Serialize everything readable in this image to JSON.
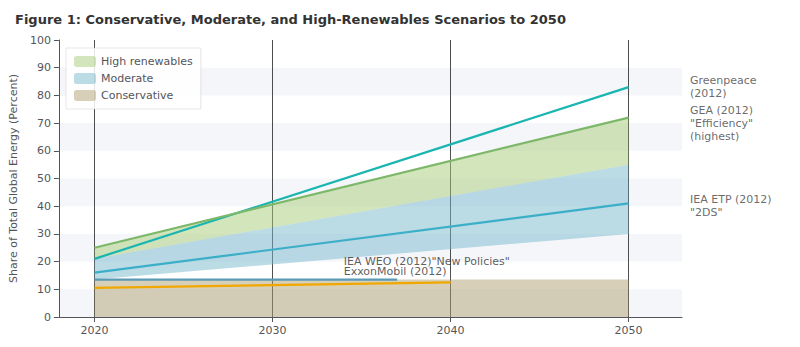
{
  "chart_data": {
    "type": "line",
    "title": "Figure 1: Conservative, Moderate, and High-Renewables Scenarios to 2050",
    "ylabel": "Share of Total Global Energy (Percent)",
    "xlim": [
      2018,
      2053
    ],
    "ylim": [
      0,
      100
    ],
    "xticks": [
      2020,
      2030,
      2040,
      2050
    ],
    "yticks": [
      0,
      10,
      20,
      30,
      40,
      50,
      60,
      70,
      80,
      90,
      100
    ],
    "grid": true,
    "legend": "upper left",
    "bands": [
      {
        "name": "High renewables",
        "color": "#a8cc78",
        "x": [
          2020,
          2050
        ],
        "y_low": [
          21,
          55
        ],
        "y_high": [
          25,
          72
        ]
      },
      {
        "name": "Moderate",
        "color": "#78b8cc",
        "x": [
          2020,
          2050
        ],
        "y_low": [
          13.5,
          30
        ],
        "y_high": [
          21,
          55
        ]
      },
      {
        "name": "Conservative",
        "color": "#b0a070",
        "x": [
          2020,
          2050
        ],
        "y_low": [
          0,
          0
        ],
        "y_high": [
          13.5,
          13.5
        ]
      }
    ],
    "series": [
      {
        "color": "#1ab5b0",
        "x": [
          2020,
          2050
        ],
        "values": [
          21,
          83
        ]
      },
      {
        "color": "#7db86a",
        "x": [
          2020,
          2050
        ],
        "values": [
          25,
          72
        ]
      },
      {
        "color": "#3baec8",
        "x": [
          2020,
          2050
        ],
        "values": [
          16,
          41
        ]
      },
      {
        "color": "#5a9ab5",
        "x": [
          2020,
          2037
        ],
        "values": [
          13.5,
          13.5
        ]
      },
      {
        "color": "#f0a800",
        "x": [
          2020,
          2040
        ],
        "values": [
          10.5,
          12.5
        ]
      }
    ],
    "side_labels": [
      {
        "y": 83,
        "text": "Greenpeace\n(2012)"
      },
      {
        "y": 70,
        "text": "GEA (2012)\n\"Efficiency\"\n(highest)"
      },
      {
        "y": 40,
        "text": "IEA ETP (2012)\n\"2DS\""
      }
    ],
    "annotations": [
      {
        "x": 2034,
        "y": 18.0,
        "text": "IEA WEO (2012)\"New Policies\""
      },
      {
        "x": 2034,
        "y": 14.5,
        "text": "ExxonMobil (2012)"
      }
    ]
  }
}
